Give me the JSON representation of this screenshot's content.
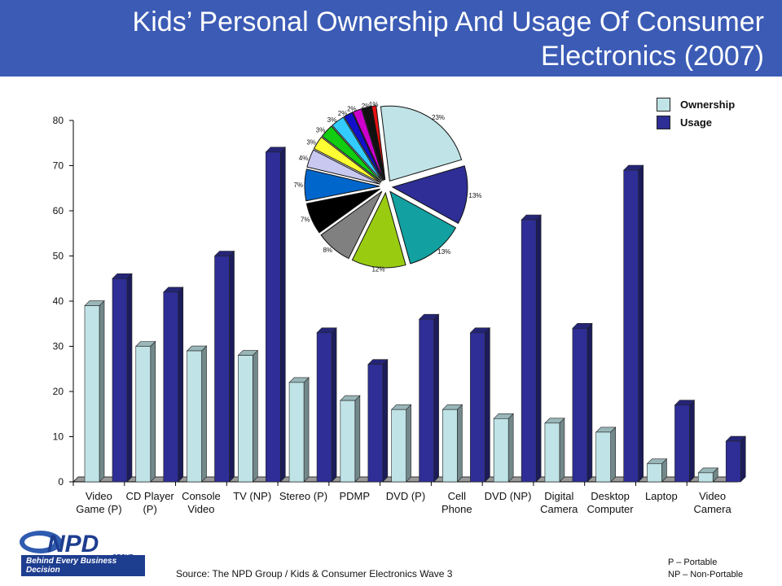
{
  "header": {
    "title_line1": "Kids’ Personal Ownership And Usage Of Consumer",
    "title_line2": "Electronics (2007)"
  },
  "colors": {
    "header_bg": "#3b5bb5",
    "ownership": "#bfe3e6",
    "usage": "#2e2e96"
  },
  "legend": {
    "placement": "top-right",
    "items": [
      {
        "label": "Ownership",
        "color": "#bfe3e6"
      },
      {
        "label": "Usage",
        "color": "#2e2e96"
      }
    ]
  },
  "chart_data": [
    {
      "type": "bar",
      "title": "",
      "xlabel": "",
      "ylabel": "",
      "ylim": [
        0,
        80
      ],
      "yticks": [
        0,
        10,
        20,
        30,
        40,
        50,
        60,
        70,
        80
      ],
      "categories": [
        [
          "Video",
          "Game (P)"
        ],
        [
          "CD Player",
          "(P)"
        ],
        [
          "Console",
          "Video"
        ],
        [
          "TV (NP)"
        ],
        [
          "Stereo (P)"
        ],
        [
          "PDMP"
        ],
        [
          "DVD (P)"
        ],
        [
          "Cell",
          "Phone"
        ],
        [
          "DVD (NP)"
        ],
        [
          "Digital",
          "Camera"
        ],
        [
          "Desktop",
          "Computer"
        ],
        [
          "Laptop"
        ],
        [
          "Video",
          "Camera"
        ]
      ],
      "series": [
        {
          "name": "Ownership",
          "values": [
            39,
            30,
            29,
            28,
            22,
            18,
            16,
            16,
            14,
            13,
            11,
            4,
            2
          ]
        },
        {
          "name": "Usage",
          "values": [
            45,
            42,
            50,
            73,
            33,
            26,
            36,
            33,
            58,
            34,
            69,
            17,
            9
          ]
        }
      ],
      "grid": false
    },
    {
      "type": "pie",
      "labels": [
        "23%",
        "13%",
        "13%",
        "12%",
        "8%",
        "7%",
        "7%",
        "4%",
        "3%",
        "3%",
        "3%",
        "2%",
        "2%",
        "2%",
        "1%"
      ],
      "values": [
        23,
        13,
        13,
        12,
        8,
        7,
        7,
        4,
        3,
        3,
        3,
        2,
        2,
        2,
        1
      ],
      "colors": [
        "#bfe3e6",
        "#2e2e96",
        "#12a0a0",
        "#99cc11",
        "#808080",
        "#000000",
        "#0066cc",
        "#c8c8f0",
        "#ffff33",
        "#11cc11",
        "#33ccff",
        "#1111cc",
        "#cc00cc",
        "#111111",
        "#e51111"
      ]
    }
  ],
  "footer": {
    "logo_text": "NPD",
    "logo_subtext": "GROUP",
    "logo_tagline": "Behind Every Business Decision",
    "source": "Source:  The NPD Group / Kids & Consumer Electronics Wave 3",
    "note_p": "P – Portable",
    "note_np": "NP – Non-Portable"
  }
}
